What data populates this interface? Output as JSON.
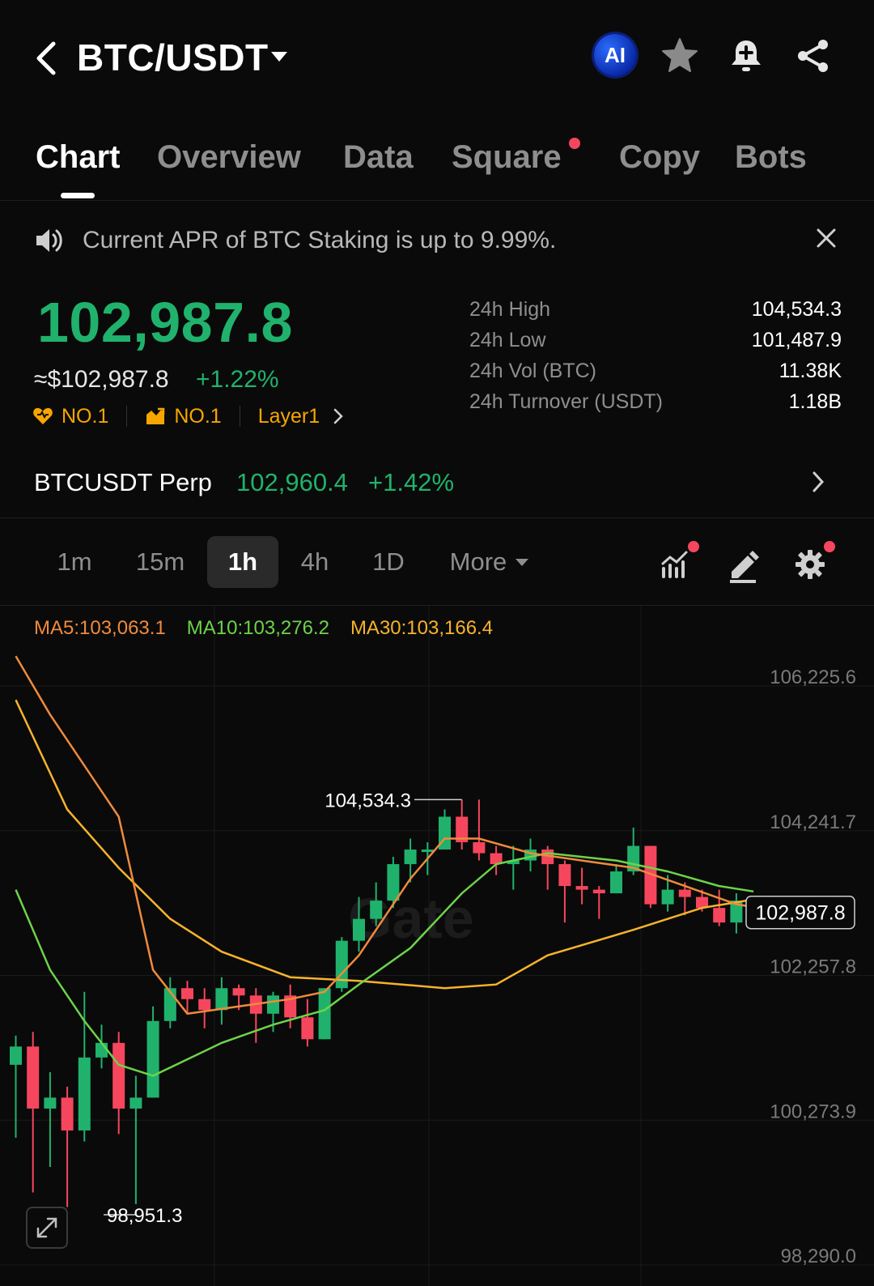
{
  "header": {
    "pair": "BTC/USDT",
    "ai_label": "AI"
  },
  "tabs": [
    {
      "label": "Chart",
      "active": true
    },
    {
      "label": "Overview"
    },
    {
      "label": "Data"
    },
    {
      "label": "Square",
      "notification": true
    },
    {
      "label": "Copy"
    },
    {
      "label": "Bots"
    }
  ],
  "announcement": "Current APR of BTC Staking is up to 9.99%.",
  "price": {
    "last": "102,987.8",
    "usd": "≈$102,987.8",
    "change": "+1.22%"
  },
  "tags": [
    {
      "icon": "heart-icon",
      "label": "NO.1"
    },
    {
      "icon": "trend-chart-icon",
      "label": "NO.1"
    },
    {
      "icon": "",
      "label": "Layer1"
    }
  ],
  "stats": [
    {
      "label": "24h High",
      "value": "104,534.3"
    },
    {
      "label": "24h Low",
      "value": "101,487.9"
    },
    {
      "label": "24h Vol (BTC)",
      "value": "11.38K"
    },
    {
      "label": "24h Turnover (USDT)",
      "value": "1.18B"
    }
  ],
  "perp": {
    "name": "BTCUSDT Perp",
    "price": "102,960.4",
    "change": "+1.42%"
  },
  "intervals": [
    "1m",
    "15m",
    "1h",
    "4h",
    "1D",
    "More"
  ],
  "active_interval": "1h",
  "colors": {
    "up": "#20b26c",
    "down": "#f6465d",
    "ma5": "#f08a3c",
    "ma10": "#6dd34a",
    "ma30": "#f7b32b",
    "accent": "#f7a600"
  },
  "ma": {
    "ma5": "MA5:103,063.1",
    "ma10": "MA10:103,276.2",
    "ma30": "MA30:103,166.4"
  },
  "chart_data": {
    "type": "candlestick",
    "y_ticks": [
      "106,225.6",
      "104,241.7",
      "102,257.8",
      "100,273.9",
      "98,290.0"
    ],
    "ylim": [
      98290.0,
      106225.6
    ],
    "high_label": "104,534.3",
    "low_label": "98,951.3",
    "last_label": "102,987.8",
    "last_price": 102987.8,
    "high_value": 104534.3,
    "low_value": 98951.3,
    "watermark": "Gate",
    "candles": [
      {
        "o": 100900,
        "c": 101150,
        "h": 101300,
        "l": 99900
      },
      {
        "o": 101150,
        "c": 100300,
        "h": 101350,
        "l": 99150
      },
      {
        "o": 100300,
        "c": 100450,
        "h": 100800,
        "l": 99500
      },
      {
        "o": 100450,
        "c": 100000,
        "h": 100600,
        "l": 98951
      },
      {
        "o": 100000,
        "c": 101000,
        "h": 101900,
        "l": 99850
      },
      {
        "o": 101000,
        "c": 101200,
        "h": 101450,
        "l": 100850
      },
      {
        "o": 101200,
        "c": 100300,
        "h": 101350,
        "l": 99950
      },
      {
        "o": 100300,
        "c": 100450,
        "h": 100750,
        "l": 98990
      },
      {
        "o": 100450,
        "c": 101500,
        "h": 101700,
        "l": 100450
      },
      {
        "o": 101500,
        "c": 101950,
        "h": 102100,
        "l": 101400
      },
      {
        "o": 101950,
        "c": 101800,
        "h": 102050,
        "l": 101600
      },
      {
        "o": 101800,
        "c": 101650,
        "h": 101950,
        "l": 101400
      },
      {
        "o": 101650,
        "c": 101950,
        "h": 102100,
        "l": 101450
      },
      {
        "o": 101950,
        "c": 101850,
        "h": 102000,
        "l": 101650
      },
      {
        "o": 101850,
        "c": 101600,
        "h": 101950,
        "l": 101200
      },
      {
        "o": 101600,
        "c": 101850,
        "h": 101900,
        "l": 101350
      },
      {
        "o": 101850,
        "c": 101550,
        "h": 102000,
        "l": 101400
      },
      {
        "o": 101550,
        "c": 101250,
        "h": 101800,
        "l": 101150
      },
      {
        "o": 101250,
        "c": 101950,
        "h": 101950,
        "l": 101250
      },
      {
        "o": 101950,
        "c": 102600,
        "h": 102650,
        "l": 101900
      },
      {
        "o": 102600,
        "c": 102900,
        "h": 103200,
        "l": 102450
      },
      {
        "o": 102900,
        "c": 103150,
        "h": 103400,
        "l": 102800
      },
      {
        "o": 103150,
        "c": 103650,
        "h": 103750,
        "l": 103050
      },
      {
        "o": 103650,
        "c": 103850,
        "h": 104000,
        "l": 103400
      },
      {
        "o": 103850,
        "c": 103850,
        "h": 103950,
        "l": 103500
      },
      {
        "o": 103850,
        "c": 104300,
        "h": 104400,
        "l": 103900
      },
      {
        "o": 104300,
        "c": 103950,
        "h": 104534,
        "l": 103850
      },
      {
        "o": 103950,
        "c": 103800,
        "h": 104534,
        "l": 103700
      },
      {
        "o": 103800,
        "c": 103650,
        "h": 103900,
        "l": 103500
      },
      {
        "o": 103650,
        "c": 103700,
        "h": 103900,
        "l": 103300
      },
      {
        "o": 103700,
        "c": 103850,
        "h": 104000,
        "l": 103550
      },
      {
        "o": 103850,
        "c": 103650,
        "h": 103900,
        "l": 103300
      },
      {
        "o": 103650,
        "c": 103350,
        "h": 103700,
        "l": 102850
      },
      {
        "o": 103350,
        "c": 103300,
        "h": 103600,
        "l": 103100
      },
      {
        "o": 103300,
        "c": 103250,
        "h": 103350,
        "l": 102900
      },
      {
        "o": 103250,
        "c": 103550,
        "h": 103650,
        "l": 103250
      },
      {
        "o": 103550,
        "c": 103900,
        "h": 104150,
        "l": 103500
      },
      {
        "o": 103900,
        "c": 103100,
        "h": 103900,
        "l": 103050
      },
      {
        "o": 103100,
        "c": 103300,
        "h": 103500,
        "l": 103000
      },
      {
        "o": 103300,
        "c": 103200,
        "h": 103400,
        "l": 102950
      },
      {
        "o": 103200,
        "c": 103050,
        "h": 103300,
        "l": 103000
      },
      {
        "o": 103050,
        "c": 102850,
        "h": 103300,
        "l": 102800
      },
      {
        "o": 102850,
        "c": 103150,
        "h": 103250,
        "l": 102700
      },
      {
        "o": 103150,
        "c": 102988,
        "h": 103200,
        "l": 102850
      }
    ],
    "ma5": [
      {
        "i": 0,
        "v": 106500
      },
      {
        "i": 2,
        "v": 105700
      },
      {
        "i": 6,
        "v": 104300
      },
      {
        "i": 8,
        "v": 102200
      },
      {
        "i": 10,
        "v": 101600
      },
      {
        "i": 13,
        "v": 101700
      },
      {
        "i": 16,
        "v": 101800
      },
      {
        "i": 18,
        "v": 101900
      },
      {
        "i": 20,
        "v": 102400
      },
      {
        "i": 23,
        "v": 103450
      },
      {
        "i": 25,
        "v": 104000
      },
      {
        "i": 27,
        "v": 104000
      },
      {
        "i": 30,
        "v": 103800
      },
      {
        "i": 33,
        "v": 103700
      },
      {
        "i": 36,
        "v": 103600
      },
      {
        "i": 39,
        "v": 103350
      },
      {
        "i": 42,
        "v": 103100
      },
      {
        "i": 43,
        "v": 103063
      }
    ],
    "ma10": [
      {
        "i": 0,
        "v": 103300
      },
      {
        "i": 2,
        "v": 102200
      },
      {
        "i": 4,
        "v": 101500
      },
      {
        "i": 6,
        "v": 100900
      },
      {
        "i": 8,
        "v": 100750
      },
      {
        "i": 12,
        "v": 101200
      },
      {
        "i": 15,
        "v": 101450
      },
      {
        "i": 18,
        "v": 101650
      },
      {
        "i": 20,
        "v": 102000
      },
      {
        "i": 23,
        "v": 102500
      },
      {
        "i": 26,
        "v": 103250
      },
      {
        "i": 28,
        "v": 103650
      },
      {
        "i": 31,
        "v": 103800
      },
      {
        "i": 35,
        "v": 103700
      },
      {
        "i": 38,
        "v": 103550
      },
      {
        "i": 41,
        "v": 103350
      },
      {
        "i": 43,
        "v": 103276
      }
    ],
    "ma30": [
      {
        "i": 0,
        "v": 105900
      },
      {
        "i": 3,
        "v": 104400
      },
      {
        "i": 6,
        "v": 103600
      },
      {
        "i": 9,
        "v": 102900
      },
      {
        "i": 12,
        "v": 102450
      },
      {
        "i": 16,
        "v": 102100
      },
      {
        "i": 20,
        "v": 102050
      },
      {
        "i": 25,
        "v": 101950
      },
      {
        "i": 28,
        "v": 102000
      },
      {
        "i": 31,
        "v": 102400
      },
      {
        "i": 36,
        "v": 102750
      },
      {
        "i": 40,
        "v": 103050
      },
      {
        "i": 43,
        "v": 103166
      }
    ]
  }
}
